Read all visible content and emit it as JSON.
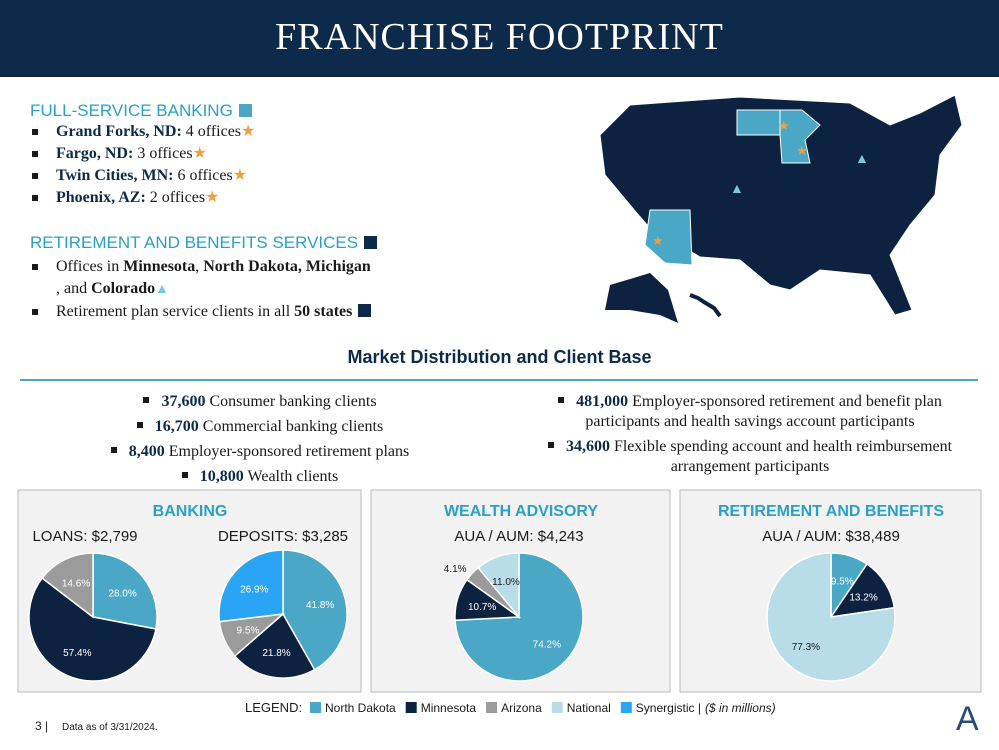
{
  "header": {
    "title": "FRANCHISE FOOTPRINT"
  },
  "full_service": {
    "heading": "FULL-SERVICE BANKING",
    "items": [
      {
        "place": "Grand Forks, ND:",
        "detail": "4 offices"
      },
      {
        "place": "Fargo, ND:",
        "detail": "3 offices"
      },
      {
        "place": "Twin Cities, MN:",
        "detail": "6 offices"
      },
      {
        "place": "Phoenix, AZ:",
        "detail": "2 offices"
      }
    ]
  },
  "retirement_services": {
    "heading": "RETIREMENT AND BENEFITS SERVICES",
    "items": [
      [
        {
          "text": "Offices in ",
          "bold": false
        },
        {
          "text": "Minnesota",
          "bold": true
        },
        {
          "text": ", ",
          "bold": false
        },
        {
          "text": "North Dakota, Michigan",
          "bold": true
        },
        {
          "text": ", and ",
          "bold": false
        },
        {
          "text": "Colorado",
          "bold": true
        }
      ],
      [
        {
          "text": "Retirement plan service clients in all ",
          "bold": false
        },
        {
          "text": "50 states",
          "bold": true
        }
      ]
    ]
  },
  "market": {
    "title": "Market Distribution and Client Base",
    "left_items": [
      {
        "number": "37,600",
        "text": "Consumer banking clients"
      },
      {
        "number": "16,700",
        "text": "Commercial banking clients"
      },
      {
        "number": "8,400",
        "text": "Employer-sponsored retirement plans"
      },
      {
        "number": "10,800",
        "text": "Wealth clients"
      }
    ],
    "right_items": [
      {
        "number": "481,000",
        "text": "Employer-sponsored retirement and benefit plan participants and health savings account participants"
      },
      {
        "number": "34,600",
        "text": "Flexible spending account and health reimbursement arrangement participants"
      }
    ]
  },
  "panels": [
    {
      "title": "BANKING"
    },
    {
      "title": "WEALTH ADVISORY"
    },
    {
      "title": "RETIREMENT AND BENEFITS"
    }
  ],
  "chart_data": [
    {
      "type": "pie",
      "title": "LOANS: $2,799",
      "categories": [
        "North Dakota",
        "Minnesota",
        "Arizona"
      ],
      "values": [
        28.0,
        57.4,
        14.6
      ],
      "value_labels": [
        "28.0%",
        "57.4%",
        "14.6%"
      ],
      "colors": [
        "#4aa8c6",
        "#0d2240",
        "#9b9b9b"
      ]
    },
    {
      "type": "pie",
      "title": "DEPOSITS: $3,285",
      "categories": [
        "North Dakota",
        "Minnesota",
        "Arizona",
        "Synergistic"
      ],
      "values": [
        41.8,
        21.8,
        9.5,
        26.9
      ],
      "value_labels": [
        "41.8%",
        "21.8%",
        "9.5%",
        "26.9%"
      ],
      "colors": [
        "#4aa8c6",
        "#0d2240",
        "#9b9b9b",
        "#2aa4f4"
      ]
    },
    {
      "type": "pie",
      "title": "AUA / AUM: $4,243",
      "categories": [
        "North Dakota",
        "Minnesota",
        "Arizona",
        "National"
      ],
      "values": [
        74.2,
        10.7,
        4.1,
        11.0
      ],
      "value_labels": [
        "74.2%",
        "10.7%",
        "4.1%",
        "11.0%"
      ],
      "colors": [
        "#4aa8c6",
        "#0d2240",
        "#9b9b9b",
        "#b8dde8"
      ]
    },
    {
      "type": "pie",
      "title": "AUA / AUM: $38,489",
      "categories": [
        "North Dakota",
        "Minnesota",
        "National"
      ],
      "values": [
        9.5,
        13.2,
        77.3
      ],
      "value_labels": [
        "9.5%",
        "13.2%",
        "77.3%"
      ],
      "colors": [
        "#4aa8c6",
        "#0d2240",
        "#b8dde8"
      ]
    }
  ],
  "legend": {
    "label": "LEGEND:",
    "items": [
      {
        "name": "North Dakota",
        "color": "#4aa8c6"
      },
      {
        "name": "Minnesota",
        "color": "#0d2240"
      },
      {
        "name": "Arizona",
        "color": "#9b9b9b"
      },
      {
        "name": "National",
        "color": "#b8dde8"
      },
      {
        "name": "Synergistic |",
        "color": "#2aa4f4"
      }
    ],
    "note": "($ in millions)"
  },
  "footer": {
    "page": "3 |",
    "note": "Data as of 3/31/2024."
  }
}
